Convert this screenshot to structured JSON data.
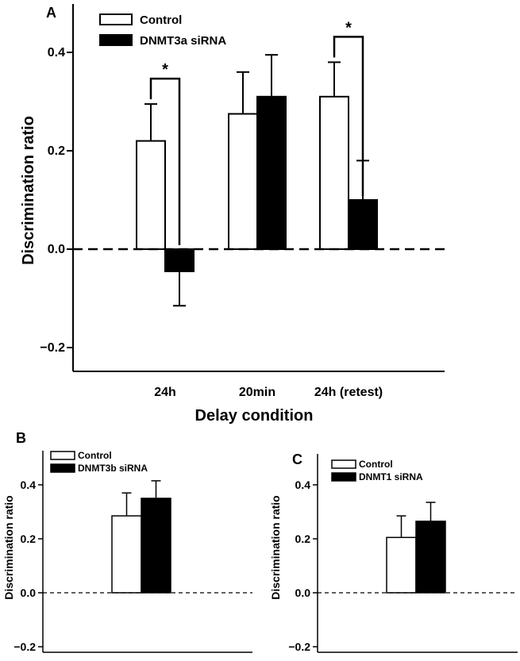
{
  "colors": {
    "control": "#ffffff",
    "treatment": "#000000",
    "axis": "#000000"
  },
  "chart_data": [
    {
      "panel": "A",
      "type": "bar",
      "xlabel": "Delay condition",
      "ylabel": "Discrimination ratio",
      "ylim": [
        -0.25,
        0.5
      ],
      "yticks": [
        -0.2,
        0.0,
        0.2,
        0.4
      ],
      "ytick_labels": [
        "−0.2",
        "0.0",
        "0.2",
        "0.4"
      ],
      "categories": [
        "24h",
        "20min",
        "24h (retest)"
      ],
      "series": [
        {
          "name": "Control",
          "values": [
            0.22,
            0.275,
            0.31
          ],
          "errors": [
            0.075,
            0.085,
            0.07
          ]
        },
        {
          "name": "DNMT3a siRNA",
          "values": [
            -0.045,
            0.31,
            0.1
          ],
          "errors": [
            0.07,
            0.085,
            0.08
          ]
        }
      ],
      "annotations": [
        {
          "category_index": 0,
          "text": "*"
        },
        {
          "category_index": 2,
          "text": "*"
        }
      ],
      "dashed_zero_line": true,
      "legend_position": "top-left"
    },
    {
      "panel": "B",
      "type": "bar",
      "ylabel": "Discrimination ratio",
      "ylim": [
        -0.25,
        0.55
      ],
      "yticks": [
        -0.2,
        0.0,
        0.2,
        0.4
      ],
      "ytick_labels": [
        "−0.2",
        "0.0",
        "0.2",
        "0.4"
      ],
      "series": [
        {
          "name": "Control",
          "values": [
            0.285
          ],
          "errors": [
            0.085
          ]
        },
        {
          "name": "DNMT3b siRNA",
          "values": [
            0.35
          ],
          "errors": [
            0.065
          ]
        }
      ],
      "dashed_zero_line": true,
      "legend_position": "top-left"
    },
    {
      "panel": "C",
      "type": "bar",
      "ylabel": "Discrimination ratio",
      "ylim": [
        -0.25,
        0.55
      ],
      "yticks": [
        -0.2,
        0.0,
        0.2,
        0.4
      ],
      "ytick_labels": [
        "−0.2",
        "0.0",
        "0.2",
        "0.4"
      ],
      "series": [
        {
          "name": "Control",
          "values": [
            0.205
          ],
          "errors": [
            0.08
          ]
        },
        {
          "name": "DNMT1 siRNA",
          "values": [
            0.265
          ],
          "errors": [
            0.07
          ]
        }
      ],
      "dashed_zero_line": true,
      "legend_position": "top-left"
    }
  ]
}
